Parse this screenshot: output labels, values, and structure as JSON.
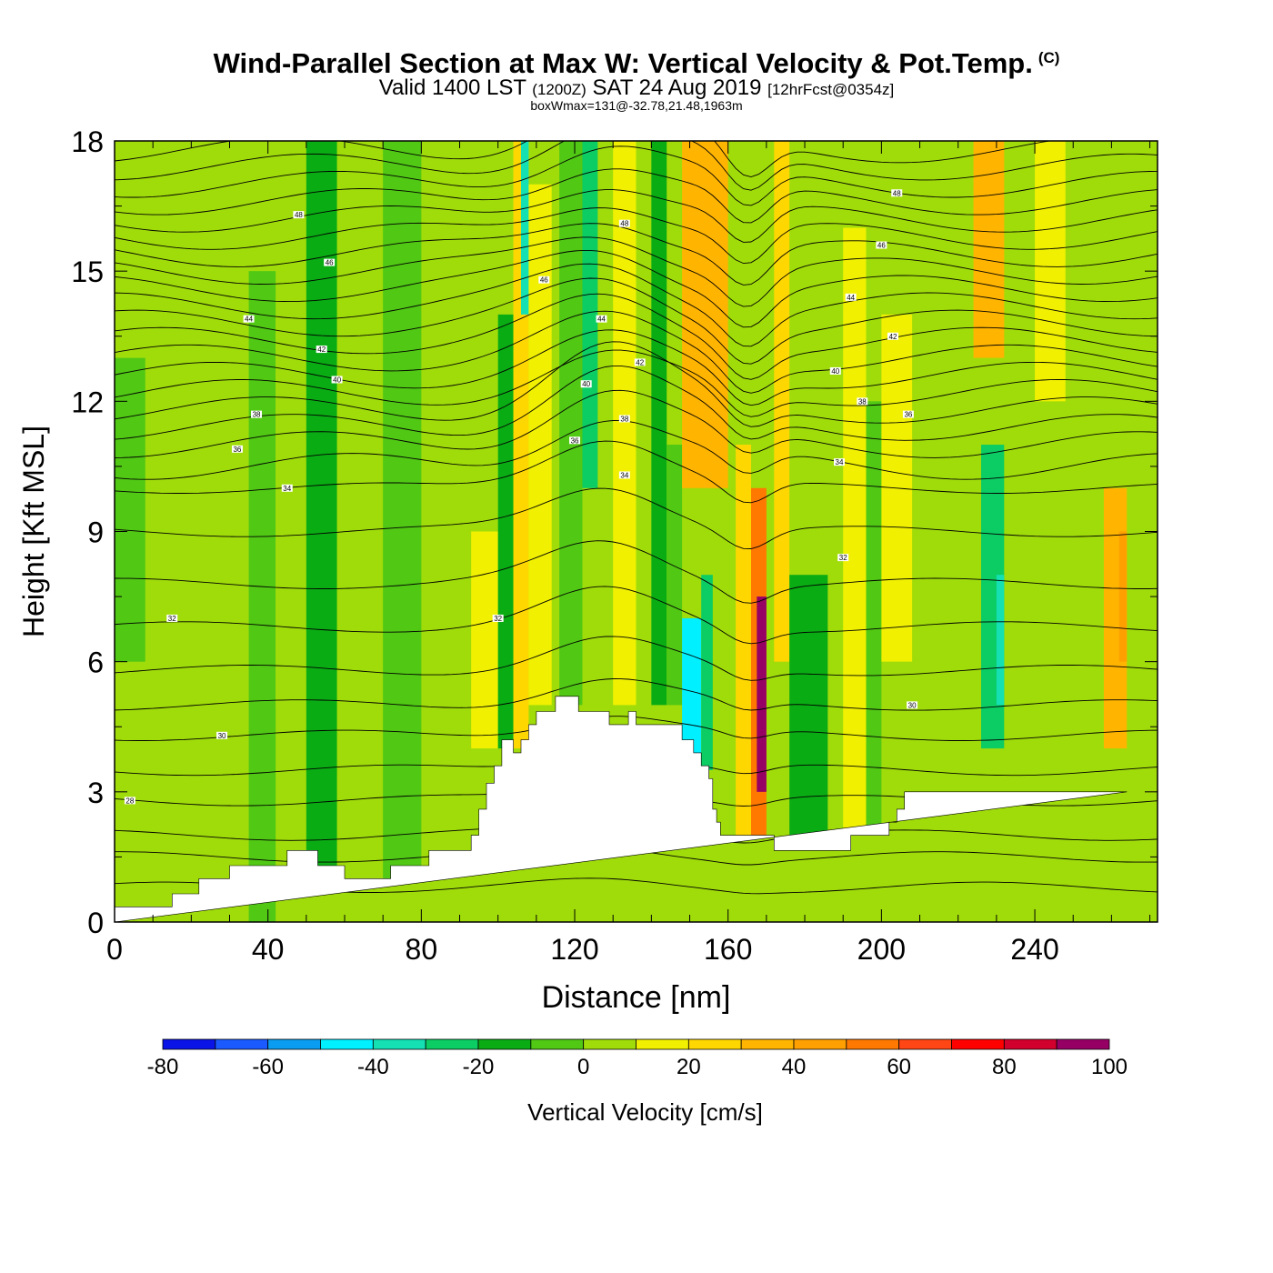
{
  "header": {
    "title": "Wind-Parallel Section at Max W: Vertical Velocity & Pot.Temp.",
    "copyright_mark": "(C)",
    "valid_prefix": "Valid 1400 LST",
    "valid_utc": "(1200Z)",
    "valid_date": "SAT 24 Aug 2019",
    "forecast_note": "[12hrFcst@0354z]",
    "box_wmax": "boxWmax=131@-32.78,21.48,1963m"
  },
  "chart_data": {
    "type": "heatmap",
    "title": "Wind-Parallel Section at Max W: Vertical Velocity & Pot.Temp.",
    "xlabel": "Distance [nm]",
    "ylabel": "Height [Kft MSL]",
    "xlim": [
      0,
      272
    ],
    "ylim": [
      0,
      18
    ],
    "x_ticks": [
      0,
      40,
      80,
      120,
      160,
      200,
      240
    ],
    "y_ticks": [
      0,
      3,
      6,
      9,
      12,
      15,
      18
    ],
    "colorbar": {
      "label": "Vertical Velocity [cm/s]",
      "boundaries": [
        -80,
        -70,
        -60,
        -50,
        -40,
        -30,
        -20,
        -10,
        0,
        10,
        20,
        30,
        40,
        50,
        60,
        70,
        80,
        90,
        100
      ],
      "tick_labels": [
        "-80",
        "-60",
        "-40",
        "-20",
        "0",
        "20",
        "40",
        "60",
        "80",
        "100"
      ],
      "colors": [
        "#0a14e6",
        "#1a5aff",
        "#0a9cf0",
        "#00f0ff",
        "#14e0b4",
        "#0ccc64",
        "#0aac14",
        "#50c814",
        "#a0dc0a",
        "#f0f000",
        "#ffd700",
        "#ffb400",
        "#ffa000",
        "#ff7800",
        "#ff4614",
        "#ff0000",
        "#d2002d",
        "#960064"
      ]
    },
    "velocity_cells": [
      {
        "x": [
          0,
          272
        ],
        "y": [
          0,
          18
        ],
        "w": 5
      },
      {
        "x": [
          0,
          8
        ],
        "y": [
          6,
          13
        ],
        "w": -5
      },
      {
        "x": [
          12,
          24
        ],
        "y": [
          9,
          18
        ],
        "w": 5
      },
      {
        "x": [
          35,
          42
        ],
        "y": [
          0,
          15
        ],
        "w": -5
      },
      {
        "x": [
          42,
          50
        ],
        "y": [
          5,
          14
        ],
        "w": 5
      },
      {
        "x": [
          50,
          58
        ],
        "y": [
          1,
          18
        ],
        "w": -15
      },
      {
        "x": [
          62,
          68
        ],
        "y": [
          2,
          14
        ],
        "w": 5
      },
      {
        "x": [
          70,
          80
        ],
        "y": [
          1,
          18
        ],
        "w": -5
      },
      {
        "x": [
          86,
          93
        ],
        "y": [
          1,
          14
        ],
        "w": 5
      },
      {
        "x": [
          93,
          100
        ],
        "y": [
          4,
          9
        ],
        "w": 15
      },
      {
        "x": [
          100,
          104
        ],
        "y": [
          4,
          14
        ],
        "w": -15
      },
      {
        "x": [
          104,
          108
        ],
        "y": [
          4,
          18
        ],
        "w": 25
      },
      {
        "x": [
          106,
          108
        ],
        "y": [
          14,
          18
        ],
        "w": -35
      },
      {
        "x": [
          108,
          114
        ],
        "y": [
          5,
          17
        ],
        "w": 15
      },
      {
        "x": [
          116,
          122
        ],
        "y": [
          5,
          18
        ],
        "w": -5
      },
      {
        "x": [
          122,
          126
        ],
        "y": [
          10,
          18
        ],
        "w": -25
      },
      {
        "x": [
          130,
          136
        ],
        "y": [
          5,
          18
        ],
        "w": 15
      },
      {
        "x": [
          140,
          144
        ],
        "y": [
          5,
          18
        ],
        "w": -15
      },
      {
        "x": [
          144,
          148
        ],
        "y": [
          5,
          11
        ],
        "w": -5
      },
      {
        "x": [
          148,
          153
        ],
        "y": [
          3.5,
          7
        ],
        "w": -45
      },
      {
        "x": [
          153,
          156
        ],
        "y": [
          3.5,
          8
        ],
        "w": -30
      },
      {
        "x": [
          148,
          160
        ],
        "y": [
          10,
          18
        ],
        "w": 35
      },
      {
        "x": [
          162,
          166
        ],
        "y": [
          2,
          11
        ],
        "w": 25
      },
      {
        "x": [
          166,
          170
        ],
        "y": [
          2,
          10
        ],
        "w": 55
      },
      {
        "x": [
          167.5,
          170
        ],
        "y": [
          3,
          7.5
        ],
        "w": 95
      },
      {
        "x": [
          172,
          176
        ],
        "y": [
          6,
          18
        ],
        "w": 25
      },
      {
        "x": [
          176,
          186
        ],
        "y": [
          2,
          8
        ],
        "w": -15
      },
      {
        "x": [
          190,
          196
        ],
        "y": [
          2,
          16
        ],
        "w": 15
      },
      {
        "x": [
          196,
          200
        ],
        "y": [
          2,
          12
        ],
        "w": -5
      },
      {
        "x": [
          200,
          208
        ],
        "y": [
          6,
          14
        ],
        "w": 15
      },
      {
        "x": [
          214,
          222
        ],
        "y": [
          3,
          18
        ],
        "w": 5
      },
      {
        "x": [
          226,
          232
        ],
        "y": [
          4,
          11
        ],
        "w": -25
      },
      {
        "x": [
          230,
          232
        ],
        "y": [
          5,
          8
        ],
        "w": -35
      },
      {
        "x": [
          224,
          232
        ],
        "y": [
          13,
          18
        ],
        "w": 35
      },
      {
        "x": [
          240,
          248
        ],
        "y": [
          12,
          18
        ],
        "w": 15
      },
      {
        "x": [
          258,
          264
        ],
        "y": [
          4,
          10
        ],
        "w": 35
      },
      {
        "x": [
          262,
          264
        ],
        "y": [
          6,
          9
        ],
        "w": 45
      }
    ],
    "terrain": {
      "x": [
        0,
        15,
        15,
        22,
        22,
        30,
        30,
        45,
        45,
        53,
        53,
        60,
        60,
        72,
        72,
        82,
        82,
        93,
        93,
        95,
        95,
        97,
        97,
        99,
        99,
        101,
        101,
        104,
        104,
        106,
        106,
        108,
        108,
        110,
        110,
        115,
        115,
        121,
        121,
        129,
        129,
        134,
        134,
        136,
        136,
        148,
        148,
        151,
        151,
        153,
        153,
        155,
        155,
        156,
        156,
        157,
        157,
        158,
        158,
        165,
        165,
        172,
        172,
        192,
        192,
        202,
        202,
        204,
        204,
        206,
        206,
        264,
        264,
        272
      ],
      "y": [
        0.35,
        0.35,
        0.65,
        0.65,
        1.0,
        1.0,
        1.3,
        1.3,
        1.65,
        1.65,
        1.3,
        1.3,
        1.0,
        1.0,
        1.3,
        1.3,
        1.65,
        1.65,
        2.0,
        2.0,
        2.6,
        2.6,
        3.2,
        3.2,
        3.6,
        3.6,
        4.2,
        4.2,
        3.9,
        3.9,
        4.2,
        4.2,
        4.55,
        4.55,
        4.85,
        4.85,
        5.2,
        5.2,
        4.85,
        4.85,
        4.55,
        4.55,
        4.85,
        4.85,
        4.55,
        4.55,
        4.2,
        4.2,
        3.9,
        3.9,
        3.6,
        3.6,
        3.3,
        3.3,
        2.6,
        2.6,
        2.3,
        2.3,
        2.0,
        2.0,
        2.0,
        2.0,
        1.65,
        1.65,
        2.0,
        2.0,
        2.3,
        2.3,
        2.6,
        2.6,
        3.0,
        3.0
      ]
    },
    "isentrope_heights": [
      0.8,
      1.5,
      2.0,
      2.8,
      3.5,
      4.3,
      5.0,
      5.8,
      6.8,
      7.8,
      9.0,
      10.0,
      10.5,
      11.0,
      11.4,
      11.8,
      12.2,
      12.6,
      13.0,
      13.4,
      13.8,
      14.2,
      14.6,
      15.0,
      15.4,
      15.8,
      16.2,
      16.6,
      17.0,
      17.4,
      17.8
    ],
    "isentrope_labels": [
      {
        "x": 4,
        "y": 2.8,
        "text": "28"
      },
      {
        "x": 28,
        "y": 4.3,
        "text": "30"
      },
      {
        "x": 15,
        "y": 7.0,
        "text": "32"
      },
      {
        "x": 45,
        "y": 10.0,
        "text": "34"
      },
      {
        "x": 32,
        "y": 10.9,
        "text": "36"
      },
      {
        "x": 37,
        "y": 11.7,
        "text": "38"
      },
      {
        "x": 58,
        "y": 12.5,
        "text": "40"
      },
      {
        "x": 54,
        "y": 13.2,
        "text": "42"
      },
      {
        "x": 35,
        "y": 13.9,
        "text": "44"
      },
      {
        "x": 56,
        "y": 15.2,
        "text": "46"
      },
      {
        "x": 48,
        "y": 16.3,
        "text": "48"
      },
      {
        "x": 100,
        "y": 7.0,
        "text": "32"
      },
      {
        "x": 120,
        "y": 11.1,
        "text": "36"
      },
      {
        "x": 133,
        "y": 10.3,
        "text": "34"
      },
      {
        "x": 133,
        "y": 11.6,
        "text": "38"
      },
      {
        "x": 123,
        "y": 12.4,
        "text": "40"
      },
      {
        "x": 137,
        "y": 12.9,
        "text": "42"
      },
      {
        "x": 127,
        "y": 13.9,
        "text": "44"
      },
      {
        "x": 112,
        "y": 14.8,
        "text": "46"
      },
      {
        "x": 133,
        "y": 16.1,
        "text": "48"
      },
      {
        "x": 190,
        "y": 8.4,
        "text": "32"
      },
      {
        "x": 208,
        "y": 5.0,
        "text": "30"
      },
      {
        "x": 189,
        "y": 10.6,
        "text": "34"
      },
      {
        "x": 207,
        "y": 11.7,
        "text": "36"
      },
      {
        "x": 195,
        "y": 12.0,
        "text": "38"
      },
      {
        "x": 188,
        "y": 12.7,
        "text": "40"
      },
      {
        "x": 203,
        "y": 13.5,
        "text": "42"
      },
      {
        "x": 192,
        "y": 14.4,
        "text": "44"
      },
      {
        "x": 200,
        "y": 15.6,
        "text": "46"
      },
      {
        "x": 204,
        "y": 16.8,
        "text": "48"
      }
    ]
  }
}
